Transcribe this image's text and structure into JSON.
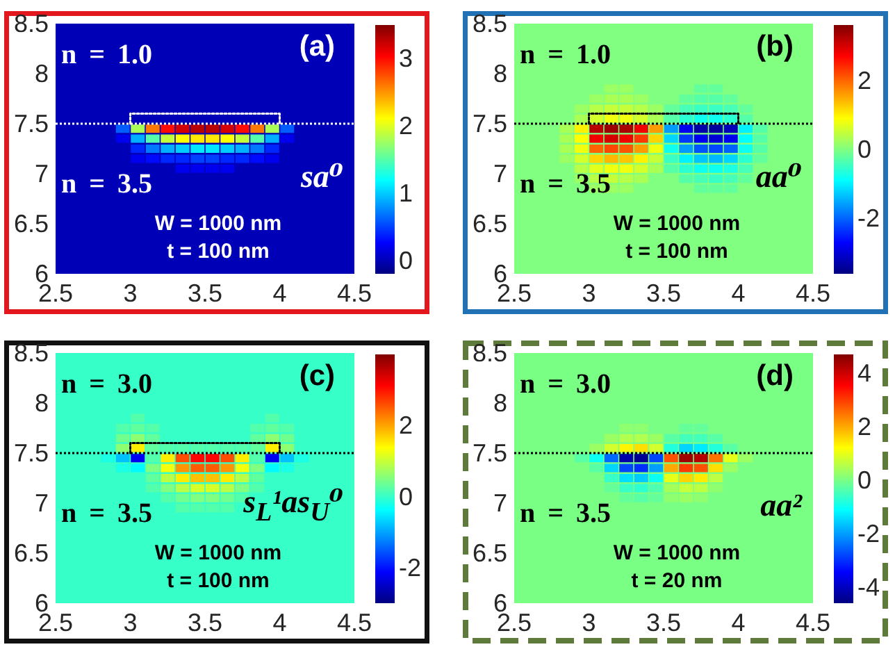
{
  "chart_data": [
    {
      "type": "scatter",
      "title": "(a)",
      "annotations": [
        "n = 1.0",
        "n = 3.5",
        "sa⁰",
        "W = 1000 nm",
        "t = 100 nm"
      ],
      "marker": "square",
      "series": [
        {
          "x": [
            2.95,
            3.05,
            3.15,
            3.25,
            3.35,
            3.45,
            3.55,
            3.65,
            3.75,
            3.85,
            3.95,
            4.05,
            2.95,
            3.05,
            3.15,
            3.25,
            3.35,
            3.45,
            3.55,
            3.65,
            3.75,
            3.85,
            3.95,
            4.05,
            3.05,
            3.15,
            3.25,
            3.35,
            3.45,
            3.55,
            3.65,
            3.75,
            3.85,
            3.95,
            3.05,
            3.15,
            3.25,
            3.35,
            3.45,
            3.55,
            3.65,
            3.75,
            3.85,
            3.95,
            3.35,
            3.45,
            3.55,
            3.65
          ],
          "values": [
            7.45,
            7.45,
            7.45,
            7.45,
            7.45,
            7.45,
            7.45,
            7.45,
            7.45,
            7.45,
            7.45,
            7.45,
            7.35,
            7.35,
            7.35,
            7.35,
            7.35,
            7.35,
            7.35,
            7.35,
            7.35,
            7.35,
            7.35,
            7.35,
            7.25,
            7.25,
            7.25,
            7.25,
            7.25,
            7.25,
            7.25,
            7.25,
            7.25,
            7.25,
            7.15,
            7.15,
            7.15,
            7.15,
            7.15,
            7.15,
            7.15,
            7.15,
            7.15,
            7.15,
            7.05,
            7.05,
            7.05,
            7.05
          ],
          "cvalues": [
            0.6,
            1.8,
            2.6,
            3.0,
            3.2,
            3.3,
            3.3,
            3.2,
            3.0,
            2.6,
            1.8,
            0.6,
            0.2,
            0.9,
            1.5,
            1.9,
            2.1,
            2.2,
            2.2,
            2.1,
            1.9,
            1.5,
            0.9,
            0.2,
            0.4,
            0.7,
            0.9,
            1.0,
            1.1,
            1.1,
            1.0,
            0.9,
            0.7,
            0.4,
            0.2,
            0.3,
            0.4,
            0.4,
            0.5,
            0.5,
            0.4,
            0.4,
            0.3,
            0.2,
            0.2,
            0.2,
            0.2,
            0.2
          ],
          "colors": [
            "#005dff",
            "#a9ff56",
            "#ff7900",
            "#ff0a00",
            "#d20000",
            "#b70000",
            "#b70000",
            "#d20000",
            "#ff0a00",
            "#ff7900",
            "#a9ff56",
            "#005dff",
            "#0000ee",
            "#00b0ff",
            "#56ffa9",
            "#c4ff3b",
            "#fcff03",
            "#ffe700",
            "#ffe700",
            "#fcff03",
            "#c4ff3b",
            "#56ffa9",
            "#00b0ff",
            "#0000ee",
            "#0026ff",
            "#0079ff",
            "#00b0ff",
            "#00cbff",
            "#00e7ff",
            "#00e7ff",
            "#00cbff",
            "#00b0ff",
            "#0079ff",
            "#0026ff",
            "#0000ee",
            "#000aff",
            "#0026ff",
            "#0026ff",
            "#0041ff",
            "#0041ff",
            "#0026ff",
            "#0026ff",
            "#000aff",
            "#0000ee",
            "#0000ee",
            "#0000ee",
            "#0000ee",
            "#0000ee"
          ]
        },
        {
          "type": "line",
          "x": [
            3,
            3,
            4,
            4
          ],
          "values": [
            7.5,
            7.6,
            7.6,
            7.5
          ],
          "color": "#ffffff",
          "line_style": "dotted",
          "marker": "none"
        }
      ],
      "xlim": [
        2.5,
        4.5
      ],
      "xticks": [
        2.5,
        3,
        3.5,
        4,
        4.5
      ],
      "ylim": [
        6,
        8.5
      ],
      "yticks": [
        6,
        6.5,
        7,
        7.5,
        8,
        8.5
      ],
      "clim": [
        -0.2,
        3.5
      ],
      "cticks": [
        0,
        1,
        2,
        3
      ],
      "ref_lines": [
        {
          "axis": "y",
          "value": 7.5,
          "color": "#ffffff",
          "line_style": "dotted"
        }
      ]
    },
    {
      "type": "scatter",
      "title": "(b)",
      "annotations": [
        "n = 1.0",
        "n = 3.5",
        "aa⁰",
        "W = 1000 nm",
        "t = 100 nm"
      ],
      "marker": "square",
      "series": [
        {
          "x": [
            3.15,
            3.25,
            3.75,
            3.85,
            3.05,
            3.15,
            3.25,
            3.35,
            3.65,
            3.75,
            3.85,
            3.95,
            2.95,
            3.05,
            3.15,
            3.25,
            3.35,
            3.45,
            3.55,
            3.65,
            3.75,
            3.85,
            3.95,
            4.05,
            2.95,
            3.05,
            3.15,
            3.25,
            3.35,
            3.45,
            3.55,
            3.65,
            3.75,
            3.85,
            3.95,
            4.05,
            2.85,
            2.95,
            3.05,
            3.15,
            3.25,
            3.35,
            3.45,
            3.55,
            3.65,
            3.75,
            3.85,
            3.95,
            4.05,
            4.15,
            2.85,
            2.95,
            3.05,
            3.15,
            3.25,
            3.35,
            3.45,
            3.55,
            3.65,
            3.75,
            3.85,
            3.95,
            4.05,
            4.15,
            2.85,
            2.95,
            3.05,
            3.15,
            3.25,
            3.35,
            3.45,
            3.55,
            3.65,
            3.75,
            3.85,
            3.95,
            4.05,
            4.15,
            2.85,
            2.95,
            3.05,
            3.15,
            3.25,
            3.35,
            3.45,
            3.55,
            3.65,
            3.75,
            3.85,
            3.95,
            4.05,
            4.15,
            2.95,
            3.05,
            3.15,
            3.25,
            3.35,
            3.45,
            3.55,
            3.65,
            3.75,
            3.85,
            3.95,
            4.05,
            2.95,
            3.05,
            3.15,
            3.25,
            3.35,
            3.65,
            3.75,
            3.85,
            3.95,
            4.05,
            3.05,
            3.15,
            3.25,
            3.75,
            3.85,
            3.95
          ],
          "values": [
            7.85,
            7.85,
            7.85,
            7.85,
            7.75,
            7.75,
            7.75,
            7.75,
            7.75,
            7.75,
            7.75,
            7.75,
            7.65,
            7.65,
            7.65,
            7.65,
            7.65,
            7.65,
            7.65,
            7.65,
            7.65,
            7.65,
            7.65,
            7.65,
            7.55,
            7.55,
            7.55,
            7.55,
            7.55,
            7.55,
            7.55,
            7.55,
            7.55,
            7.55,
            7.55,
            7.55,
            7.45,
            7.45,
            7.45,
            7.45,
            7.45,
            7.45,
            7.45,
            7.45,
            7.45,
            7.45,
            7.45,
            7.45,
            7.45,
            7.45,
            7.35,
            7.35,
            7.35,
            7.35,
            7.35,
            7.35,
            7.35,
            7.35,
            7.35,
            7.35,
            7.35,
            7.35,
            7.35,
            7.35,
            7.25,
            7.25,
            7.25,
            7.25,
            7.25,
            7.25,
            7.25,
            7.25,
            7.25,
            7.25,
            7.25,
            7.25,
            7.25,
            7.25,
            7.15,
            7.15,
            7.15,
            7.15,
            7.15,
            7.15,
            7.15,
            7.15,
            7.15,
            7.15,
            7.15,
            7.15,
            7.15,
            7.15,
            7.05,
            7.05,
            7.05,
            7.05,
            7.05,
            7.05,
            7.05,
            7.05,
            7.05,
            7.05,
            7.05,
            7.05,
            6.95,
            6.95,
            6.95,
            6.95,
            6.95,
            6.95,
            6.95,
            6.95,
            6.95,
            6.95,
            6.85,
            6.85,
            6.85,
            6.85,
            6.85,
            6.85
          ],
          "cvalues": [
            0.2,
            0.2,
            -0.2,
            -0.2,
            0.2,
            0.3,
            0.3,
            0.2,
            -0.2,
            -0.3,
            -0.3,
            -0.2,
            0.2,
            0.4,
            0.5,
            0.5,
            0.4,
            0.2,
            -0.2,
            -0.4,
            -0.5,
            -0.5,
            -0.4,
            -0.2,
            0.3,
            0.6,
            0.8,
            0.8,
            0.6,
            0.3,
            -0.3,
            -0.6,
            -0.8,
            -0.8,
            -0.6,
            -0.3,
            0.3,
            1.0,
            3.2,
            3.4,
            3.3,
            2.8,
            1.6,
            -1.6,
            -2.8,
            -3.3,
            -3.4,
            -3.2,
            -1.0,
            -0.3,
            0.3,
            0.9,
            2.8,
            3.0,
            2.8,
            2.3,
            1.2,
            -1.2,
            -2.3,
            -2.8,
            -3.0,
            -2.8,
            -0.9,
            -0.3,
            0.3,
            0.8,
            2.0,
            2.2,
            2.1,
            1.6,
            0.8,
            -0.8,
            -1.6,
            -2.1,
            -2.2,
            -2.0,
            -0.8,
            -0.3,
            0.2,
            0.6,
            1.2,
            1.4,
            1.3,
            1.0,
            0.5,
            -0.5,
            -1.0,
            -1.3,
            -1.4,
            -1.2,
            -0.6,
            -0.2,
            0.4,
            0.7,
            0.8,
            0.8,
            0.6,
            0.3,
            -0.3,
            -0.6,
            -0.8,
            -0.8,
            -0.7,
            -0.4,
            0.2,
            0.4,
            0.5,
            0.4,
            0.3,
            -0.3,
            -0.4,
            -0.5,
            -0.4,
            -0.2,
            0.2,
            0.2,
            0.2,
            -0.2,
            -0.2,
            -0.2
          ],
          "colors": [
            "#9cff63",
            "#9cff63",
            "#63ff9c",
            "#63ff9c",
            "#9cff63",
            "#aaff55",
            "#aaff55",
            "#9cff63",
            "#63ff9c",
            "#55ffaa",
            "#55ffaa",
            "#63ff9c",
            "#9cff63",
            "#b8ff47",
            "#c6ff39",
            "#c6ff39",
            "#b8ff47",
            "#9cff63",
            "#63ff9c",
            "#47ffb8",
            "#39ffc6",
            "#39ffc6",
            "#47ffb8",
            "#63ff9c",
            "#aaff55",
            "#d4ff2a",
            "#f1ff0e",
            "#f1ff0e",
            "#d4ff2a",
            "#aaff55",
            "#55ffaa",
            "#2affd4",
            "#0efff1",
            "#0efff1",
            "#2affd4",
            "#55ffaa",
            "#aaff55",
            "#fff100",
            "#b80000",
            "#9c0000",
            "#aa0000",
            "#f10000",
            "#ff9c00",
            "#009cff",
            "#0000f1",
            "#0000aa",
            "#00009c",
            "#0000b8",
            "#00f1ff",
            "#55ffaa",
            "#aaff55",
            "#ffff00",
            "#f10000",
            "#d40000",
            "#f10000",
            "#ff3900",
            "#ffd400",
            "#00d4ff",
            "#0039ff",
            "#0000f1",
            "#0000d4",
            "#0000f1",
            "#00ffff",
            "#55ffaa",
            "#aaff55",
            "#f1ff0e",
            "#ff6300",
            "#ff4700",
            "#ff5500",
            "#ff9c00",
            "#f1ff0e",
            "#0efff1",
            "#009cff",
            "#0055ff",
            "#0047ff",
            "#0063ff",
            "#0efff1",
            "#55ffaa",
            "#9cff63",
            "#d4ff2a",
            "#ffd400",
            "#ffb800",
            "#ffc600",
            "#fff100",
            "#c6ff39",
            "#39ffc6",
            "#00f1ff",
            "#00c6ff",
            "#00b8ff",
            "#00d4ff",
            "#2affd4",
            "#63ff9c",
            "#b8ff47",
            "#e3ff1c",
            "#f1ff0e",
            "#f1ff0e",
            "#d4ff2a",
            "#aaff55",
            "#55ffaa",
            "#2affd4",
            "#0efff1",
            "#0efff1",
            "#1cffe3",
            "#47ffb8",
            "#9cff63",
            "#b8ff47",
            "#c6ff39",
            "#b8ff47",
            "#aaff55",
            "#55ffaa",
            "#47ffb8",
            "#39ffc6",
            "#47ffb8",
            "#63ff9c",
            "#9cff63",
            "#9cff63",
            "#9cff63",
            "#63ff9c",
            "#63ff9c",
            "#63ff9c"
          ]
        },
        {
          "type": "line",
          "x": [
            3,
            3,
            4,
            4
          ],
          "values": [
            7.5,
            7.6,
            7.6,
            7.5
          ],
          "color": "#000000",
          "line_style": "dotted",
          "marker": "none"
        }
      ],
      "xlim": [
        2.5,
        4.5
      ],
      "xticks": [
        2.5,
        3,
        3.5,
        4,
        4.5
      ],
      "ylim": [
        6,
        8.5
      ],
      "yticks": [
        6,
        6.5,
        7,
        7.5,
        8,
        8.5
      ],
      "clim": [
        -3.6,
        3.6
      ],
      "cticks": [
        -2,
        0,
        2
      ],
      "ref_lines": [
        {
          "axis": "y",
          "value": 7.5,
          "color": "#000000",
          "line_style": "dotted"
        }
      ]
    },
    {
      "type": "scatter",
      "title": "(c)",
      "annotations": [
        "n = 3.0",
        "n = 3.5",
        "s$_{L}$¹as$_{U}$⁰",
        "W = 1000 nm",
        "t = 100 nm"
      ],
      "marker": "square",
      "series": [
        {
          "x": [
            3.05,
            3.95,
            2.95,
            3.05,
            3.15,
            3.85,
            3.95,
            4.05,
            2.95,
            3.05,
            3.15,
            3.85,
            3.95,
            4.05,
            2.95,
            3.05,
            3.15,
            3.25,
            3.35,
            3.45,
            3.55,
            3.65,
            3.75,
            3.85,
            3.95,
            4.05,
            2.85,
            2.95,
            3.05,
            3.15,
            3.25,
            3.35,
            3.45,
            3.55,
            3.65,
            3.75,
            3.85,
            3.95,
            4.05,
            4.15,
            2.95,
            3.05,
            3.15,
            3.25,
            3.35,
            3.45,
            3.55,
            3.65,
            3.75,
            3.85,
            3.95,
            4.05,
            3.15,
            3.25,
            3.35,
            3.45,
            3.55,
            3.65,
            3.75,
            3.85,
            3.15,
            3.25,
            3.35,
            3.45,
            3.55,
            3.65,
            3.75,
            3.85,
            3.25,
            3.35,
            3.45,
            3.55,
            3.65,
            3.75,
            3.35,
            3.45,
            3.55,
            3.65
          ],
          "values": [
            7.85,
            7.85,
            7.75,
            7.75,
            7.75,
            7.75,
            7.75,
            7.75,
            7.65,
            7.65,
            7.65,
            7.65,
            7.65,
            7.65,
            7.55,
            7.55,
            7.55,
            7.55,
            7.55,
            7.55,
            7.55,
            7.55,
            7.55,
            7.55,
            7.55,
            7.55,
            7.45,
            7.45,
            7.45,
            7.45,
            7.45,
            7.45,
            7.45,
            7.45,
            7.45,
            7.45,
            7.45,
            7.45,
            7.45,
            7.45,
            7.35,
            7.35,
            7.35,
            7.35,
            7.35,
            7.35,
            7.35,
            7.35,
            7.35,
            7.35,
            7.35,
            7.35,
            7.25,
            7.25,
            7.25,
            7.25,
            7.25,
            7.25,
            7.25,
            7.25,
            7.15,
            7.15,
            7.15,
            7.15,
            7.15,
            7.15,
            7.15,
            7.15,
            7.05,
            7.05,
            7.05,
            7.05,
            7.05,
            7.05,
            6.95,
            6.95,
            6.95,
            6.95
          ],
          "cvalues": [
            0.2,
            0.2,
            0.2,
            0.3,
            0.2,
            0.2,
            0.3,
            0.2,
            0.4,
            0.6,
            0.3,
            0.3,
            0.6,
            0.4,
            0.6,
            1.5,
            0.3,
            0.2,
            0.2,
            0.2,
            0.2,
            0.2,
            0.2,
            0.3,
            1.5,
            0.6,
            -0.2,
            -0.8,
            -2.2,
            0.2,
            1.5,
            2.6,
            3.1,
            3.1,
            2.6,
            1.5,
            0.2,
            -2.2,
            -0.8,
            -0.2,
            -0.2,
            -0.4,
            0.5,
            1.3,
            2.1,
            2.5,
            2.5,
            2.1,
            1.3,
            0.5,
            -0.4,
            -0.2,
            0.3,
            0.9,
            1.5,
            1.8,
            1.8,
            1.5,
            0.9,
            0.3,
            0.2,
            0.5,
            0.9,
            1.1,
            1.1,
            0.9,
            0.5,
            0.2,
            0.2,
            0.4,
            0.5,
            0.5,
            0.4,
            0.2,
            0.2,
            0.2,
            0.2,
            0.2
          ],
          "colors": [
            "#54ffab",
            "#54ffab",
            "#54ffab",
            "#62ff9d",
            "#54ffab",
            "#54ffab",
            "#62ff9d",
            "#54ffab",
            "#71ff8e",
            "#8eff71",
            "#62ff9d",
            "#62ff9d",
            "#8eff71",
            "#71ff8e",
            "#8eff71",
            "#ffed00",
            "#62ff9d",
            "#54ffab",
            "#54ffab",
            "#54ffab",
            "#54ffab",
            "#54ffab",
            "#54ffab",
            "#62ff9d",
            "#ffed00",
            "#8eff71",
            "#1affe5",
            "#00c1ff",
            "#0000f4",
            "#54ffab",
            "#ffed00",
            "#ff4c00",
            "#ff0400",
            "#ff0400",
            "#ff4c00",
            "#ffed00",
            "#54ffab",
            "#0000f4",
            "#00c1ff",
            "#1affe5",
            "#1affe5",
            "#00fbff",
            "#80ff80",
            "#f4ff0b",
            "#ff9500",
            "#ff5b00",
            "#ff5b00",
            "#ff9500",
            "#f4ff0b",
            "#80ff80",
            "#00fbff",
            "#1affe5",
            "#62ff9d",
            "#baff45",
            "#ffed00",
            "#ffc100",
            "#ffc100",
            "#ffed00",
            "#baff45",
            "#62ff9d",
            "#54ffab",
            "#80ff80",
            "#baff45",
            "#d7ff28",
            "#d7ff28",
            "#baff45",
            "#80ff80",
            "#54ffab",
            "#54ffab",
            "#71ff8e",
            "#80ff80",
            "#80ff80",
            "#71ff8e",
            "#54ffab",
            "#54ffab",
            "#54ffab",
            "#54ffab",
            "#54ffab"
          ]
        },
        {
          "type": "line",
          "x": [
            3,
            3,
            4,
            4
          ],
          "values": [
            7.5,
            7.6,
            7.6,
            7.5
          ],
          "color": "#000000",
          "line_style": "dotted",
          "marker": "none"
        }
      ],
      "xlim": [
        2.5,
        4.5
      ],
      "xticks": [
        2.5,
        3,
        3.5,
        4,
        4.5
      ],
      "ylim": [
        6,
        8.5
      ],
      "yticks": [
        6,
        6.5,
        7,
        7.5,
        8,
        8.5
      ],
      "clim": [
        -3,
        4
      ],
      "cticks": [
        -2,
        0,
        2
      ],
      "ref_lines": [
        {
          "axis": "y",
          "value": 7.5,
          "color": "#000000",
          "line_style": "dotted"
        }
      ]
    },
    {
      "type": "scatter",
      "title": "(d)",
      "annotations": [
        "n = 3.0",
        "n = 3.5",
        "aa²",
        "W = 1000 nm",
        "t = 20 nm"
      ],
      "marker": "square",
      "series": [
        {
          "x": [
            3.25,
            3.35,
            3.65,
            3.75,
            3.15,
            3.25,
            3.35,
            3.45,
            3.55,
            3.65,
            3.75,
            3.85,
            3.05,
            3.15,
            3.25,
            3.35,
            3.45,
            3.55,
            3.65,
            3.75,
            3.85,
            3.95,
            2.95,
            3.05,
            3.15,
            3.25,
            3.35,
            3.45,
            3.55,
            3.65,
            3.75,
            3.85,
            3.95,
            4.05,
            3.05,
            3.15,
            3.25,
            3.35,
            3.45,
            3.55,
            3.65,
            3.75,
            3.85,
            3.95,
            3.15,
            3.25,
            3.35,
            3.45,
            3.55,
            3.65,
            3.75,
            3.85,
            3.15,
            3.25,
            3.35,
            3.45,
            3.55,
            3.65,
            3.75,
            3.85,
            3.25,
            3.35,
            3.45,
            3.55,
            3.65,
            3.75
          ],
          "values": [
            7.75,
            7.75,
            7.75,
            7.75,
            7.65,
            7.65,
            7.65,
            7.65,
            7.65,
            7.65,
            7.65,
            7.65,
            7.55,
            7.55,
            7.55,
            7.55,
            7.55,
            7.55,
            7.55,
            7.55,
            7.55,
            7.55,
            7.45,
            7.45,
            7.45,
            7.45,
            7.45,
            7.45,
            7.45,
            7.45,
            7.45,
            7.45,
            7.45,
            7.45,
            7.35,
            7.35,
            7.35,
            7.35,
            7.35,
            7.35,
            7.35,
            7.35,
            7.35,
            7.35,
            7.25,
            7.25,
            7.25,
            7.25,
            7.25,
            7.25,
            7.25,
            7.25,
            7.15,
            7.15,
            7.15,
            7.15,
            7.15,
            7.15,
            7.15,
            7.15,
            7.05,
            7.05,
            7.05,
            7.05,
            7.05,
            7.05
          ],
          "cvalues": [
            0.2,
            0.2,
            -0.2,
            -0.2,
            0.3,
            0.5,
            0.5,
            0.3,
            -0.3,
            -0.5,
            -0.5,
            -0.3,
            0.3,
            0.8,
            1.3,
            1.5,
            0.8,
            -0.8,
            -1.5,
            -1.3,
            -0.8,
            -0.3,
            -0.3,
            -1.0,
            -2.5,
            -4.2,
            -4.4,
            -2.8,
            2.8,
            4.4,
            4.2,
            2.5,
            1.0,
            0.3,
            -0.3,
            -1.5,
            -2.8,
            -3.0,
            -2.0,
            2.0,
            3.0,
            2.8,
            1.5,
            0.3,
            -0.6,
            -1.4,
            -1.6,
            -1.0,
            1.0,
            1.6,
            1.4,
            0.6,
            -0.2,
            -0.6,
            -0.7,
            -0.4,
            0.4,
            0.7,
            0.6,
            0.2,
            -0.2,
            -0.3,
            -0.2,
            0.2,
            0.3,
            0.2
          ]
        }
      ],
      "xlim": [
        2.5,
        4.5
      ],
      "xticks": [
        2.5,
        3,
        3.5,
        4,
        4.5
      ],
      "ylim": [
        6,
        8.5
      ],
      "yticks": [
        6,
        6.5,
        7,
        7.5,
        8,
        8.5
      ],
      "clim": [
        -4.6,
        4.7
      ],
      "cticks": [
        -4,
        -2,
        0,
        2,
        4
      ],
      "ref_lines": [
        {
          "axis": "y",
          "value": 7.5,
          "color": "#000000",
          "line_style": "dotted"
        }
      ]
    }
  ]
}
